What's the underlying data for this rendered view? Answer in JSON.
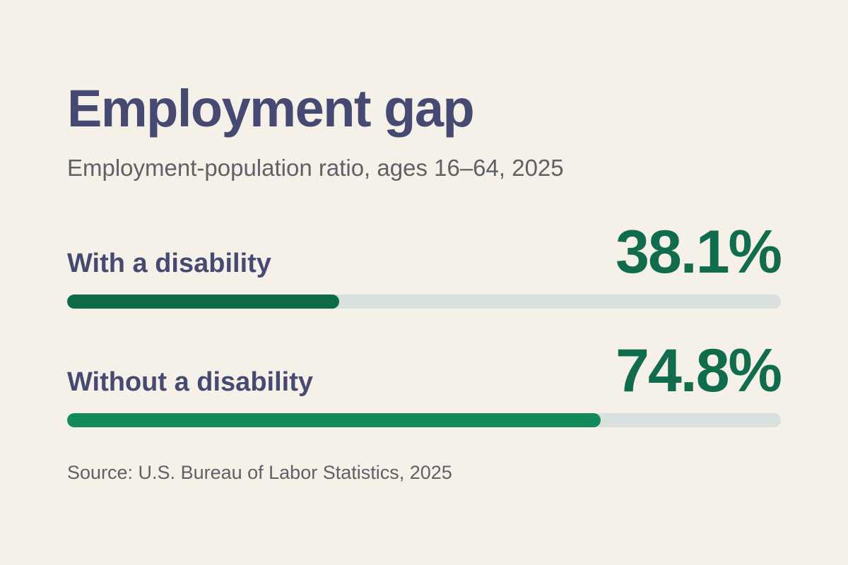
{
  "chart_data": {
    "type": "bar",
    "orientation": "horizontal",
    "title": "Employment gap",
    "subtitle": "Employment-population ratio, ages 16–64, 2025",
    "categories": [
      "With a disability",
      "Without a disability"
    ],
    "values": [
      38.1,
      74.8
    ],
    "value_labels": [
      "38.1%",
      "74.8%"
    ],
    "unit": "%",
    "xlim": [
      0,
      100
    ],
    "grid": false,
    "legend": "none",
    "bar_colors": [
      "#0E6B4A",
      "#128A5C"
    ],
    "track_color": "#D8E1DD",
    "source": "Source: U.S. Bureau of Labor Statistics, 2025"
  },
  "colors": {
    "background": "#F5F1E8",
    "title": "#464A72",
    "muted_text": "#5E6166",
    "value_text": "#116C4E"
  }
}
